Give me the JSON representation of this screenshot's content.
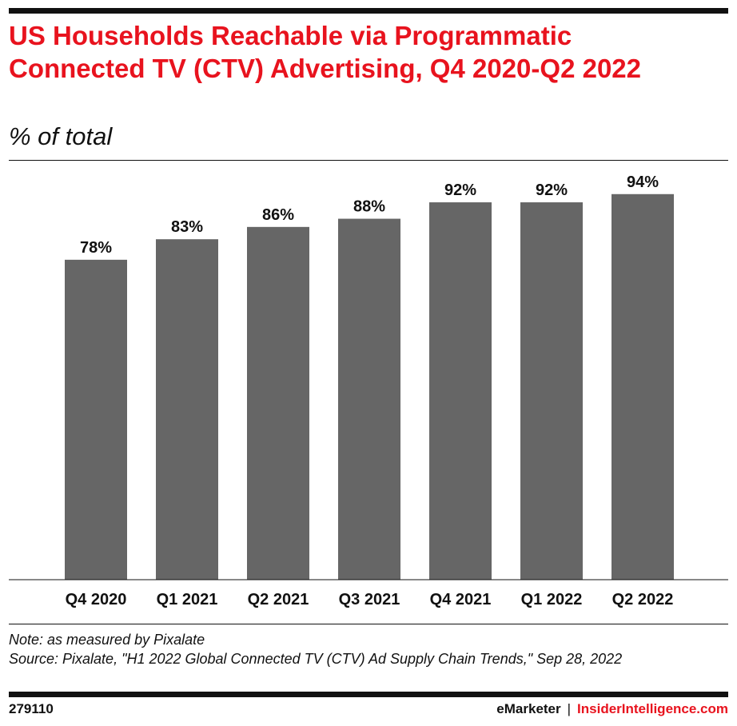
{
  "chart_data": {
    "type": "bar",
    "title": "US Households Reachable via Programmatic Connected TV (CTV) Advertising, Q4 2020-Q2 2022",
    "subtitle": "% of total",
    "categories": [
      "Q4 2020",
      "Q1 2021",
      "Q2 2021",
      "Q3 2021",
      "Q4 2021",
      "Q1 2022",
      "Q2 2022"
    ],
    "values": [
      78,
      83,
      86,
      88,
      92,
      92,
      94
    ],
    "data_labels": [
      "78%",
      "83%",
      "86%",
      "88%",
      "92%",
      "92%",
      "94%"
    ],
    "ylim": [
      0,
      100
    ],
    "grid": false,
    "bar_color": "#666666"
  },
  "note": "Note: as measured by Pixalate",
  "source": "Source: Pixalate, \"H1 2022 Global Connected TV (CTV) Ad Supply Chain Trends,\" Sep 28, 2022",
  "footer": {
    "id": "279110",
    "brand1": "eMarketer",
    "separator": "|",
    "brand2": "InsiderIntelligence.com"
  },
  "colors": {
    "accent": "#e8131e"
  }
}
